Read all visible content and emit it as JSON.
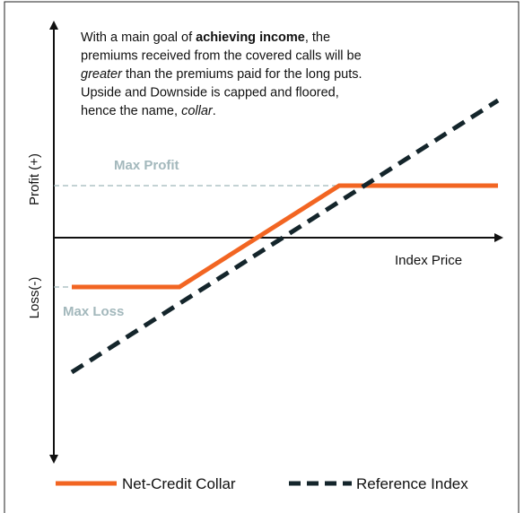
{
  "annotation": {
    "lines": [
      [
        {
          "text": "With a main goal of ",
          "style": "normal"
        },
        {
          "text": "achieving income",
          "style": "bold"
        },
        {
          "text": ", the",
          "style": "normal"
        }
      ],
      [
        {
          "text": "premiums received from the covered calls will be",
          "style": "normal"
        }
      ],
      [
        {
          "text": "greater",
          "style": "italic"
        },
        {
          "text": " than the premiums paid for the long puts.",
          "style": "normal"
        }
      ],
      [
        {
          "text": "Upside and Downside is capped and floored,",
          "style": "normal"
        }
      ],
      [
        {
          "text": "hence the name, ",
          "style": "normal"
        },
        {
          "text": "collar",
          "style": "italic"
        },
        {
          "text": ".",
          "style": "normal"
        }
      ]
    ]
  },
  "axes": {
    "y_top": "Profit (+)",
    "y_bottom": "Loss(-)",
    "x": "Index Price"
  },
  "levels": {
    "max_profit": "Max Profit",
    "max_loss": "Max Loss"
  },
  "legend": [
    "Net-Credit Collar",
    "Reference Index"
  ]
}
